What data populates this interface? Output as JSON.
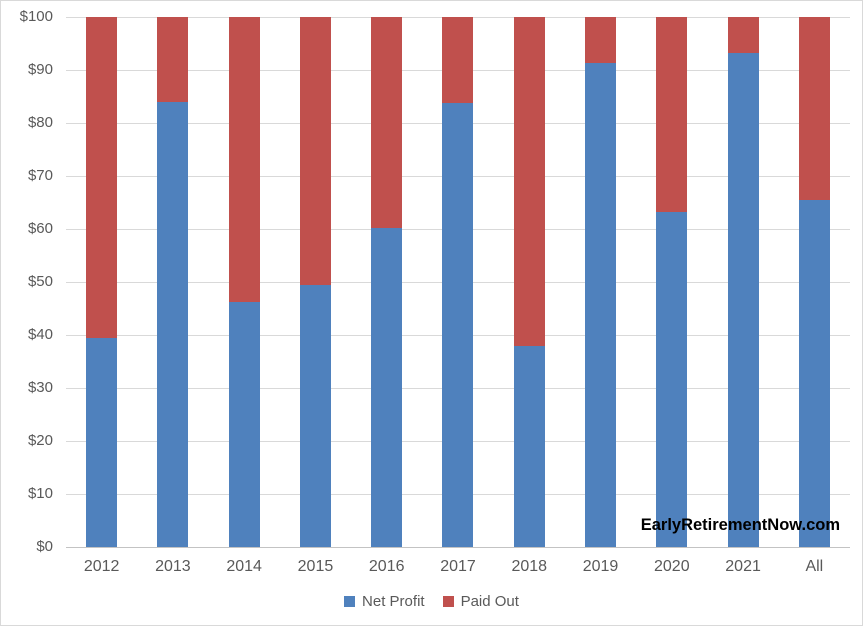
{
  "watermark": "EarlyRetirementNow.com",
  "legend": {
    "items": [
      {
        "label": "Net Profit",
        "color": "#4F81BD"
      },
      {
        "label": "Paid Out",
        "color": "#C0504D"
      }
    ]
  },
  "chart_data": {
    "type": "bar",
    "stacked": true,
    "title": "",
    "xlabel": "",
    "ylabel": "",
    "categories": [
      "2012",
      "2013",
      "2014",
      "2015",
      "2016",
      "2017",
      "2018",
      "2019",
      "2020",
      "2021",
      "All"
    ],
    "series": [
      {
        "name": "Net Profit",
        "color": "#4F81BD",
        "values": [
          39.5,
          84.0,
          46.2,
          49.4,
          60.1,
          83.7,
          37.9,
          91.4,
          63.2,
          93.2,
          65.4
        ]
      },
      {
        "name": "Paid Out",
        "color": "#C0504D",
        "values": [
          60.5,
          16.0,
          53.8,
          50.6,
          39.9,
          16.3,
          62.1,
          8.6,
          36.8,
          6.8,
          34.6
        ]
      }
    ],
    "ylim": [
      0,
      100
    ],
    "ytick_values": [
      0,
      10,
      20,
      30,
      40,
      50,
      60,
      70,
      80,
      90,
      100
    ],
    "ytick_labels": [
      "$0",
      "$10",
      "$20",
      "$30",
      "$40",
      "$50",
      "$60",
      "$70",
      "$80",
      "$90",
      "$100"
    ],
    "grid": true,
    "legend_position": "bottom"
  }
}
